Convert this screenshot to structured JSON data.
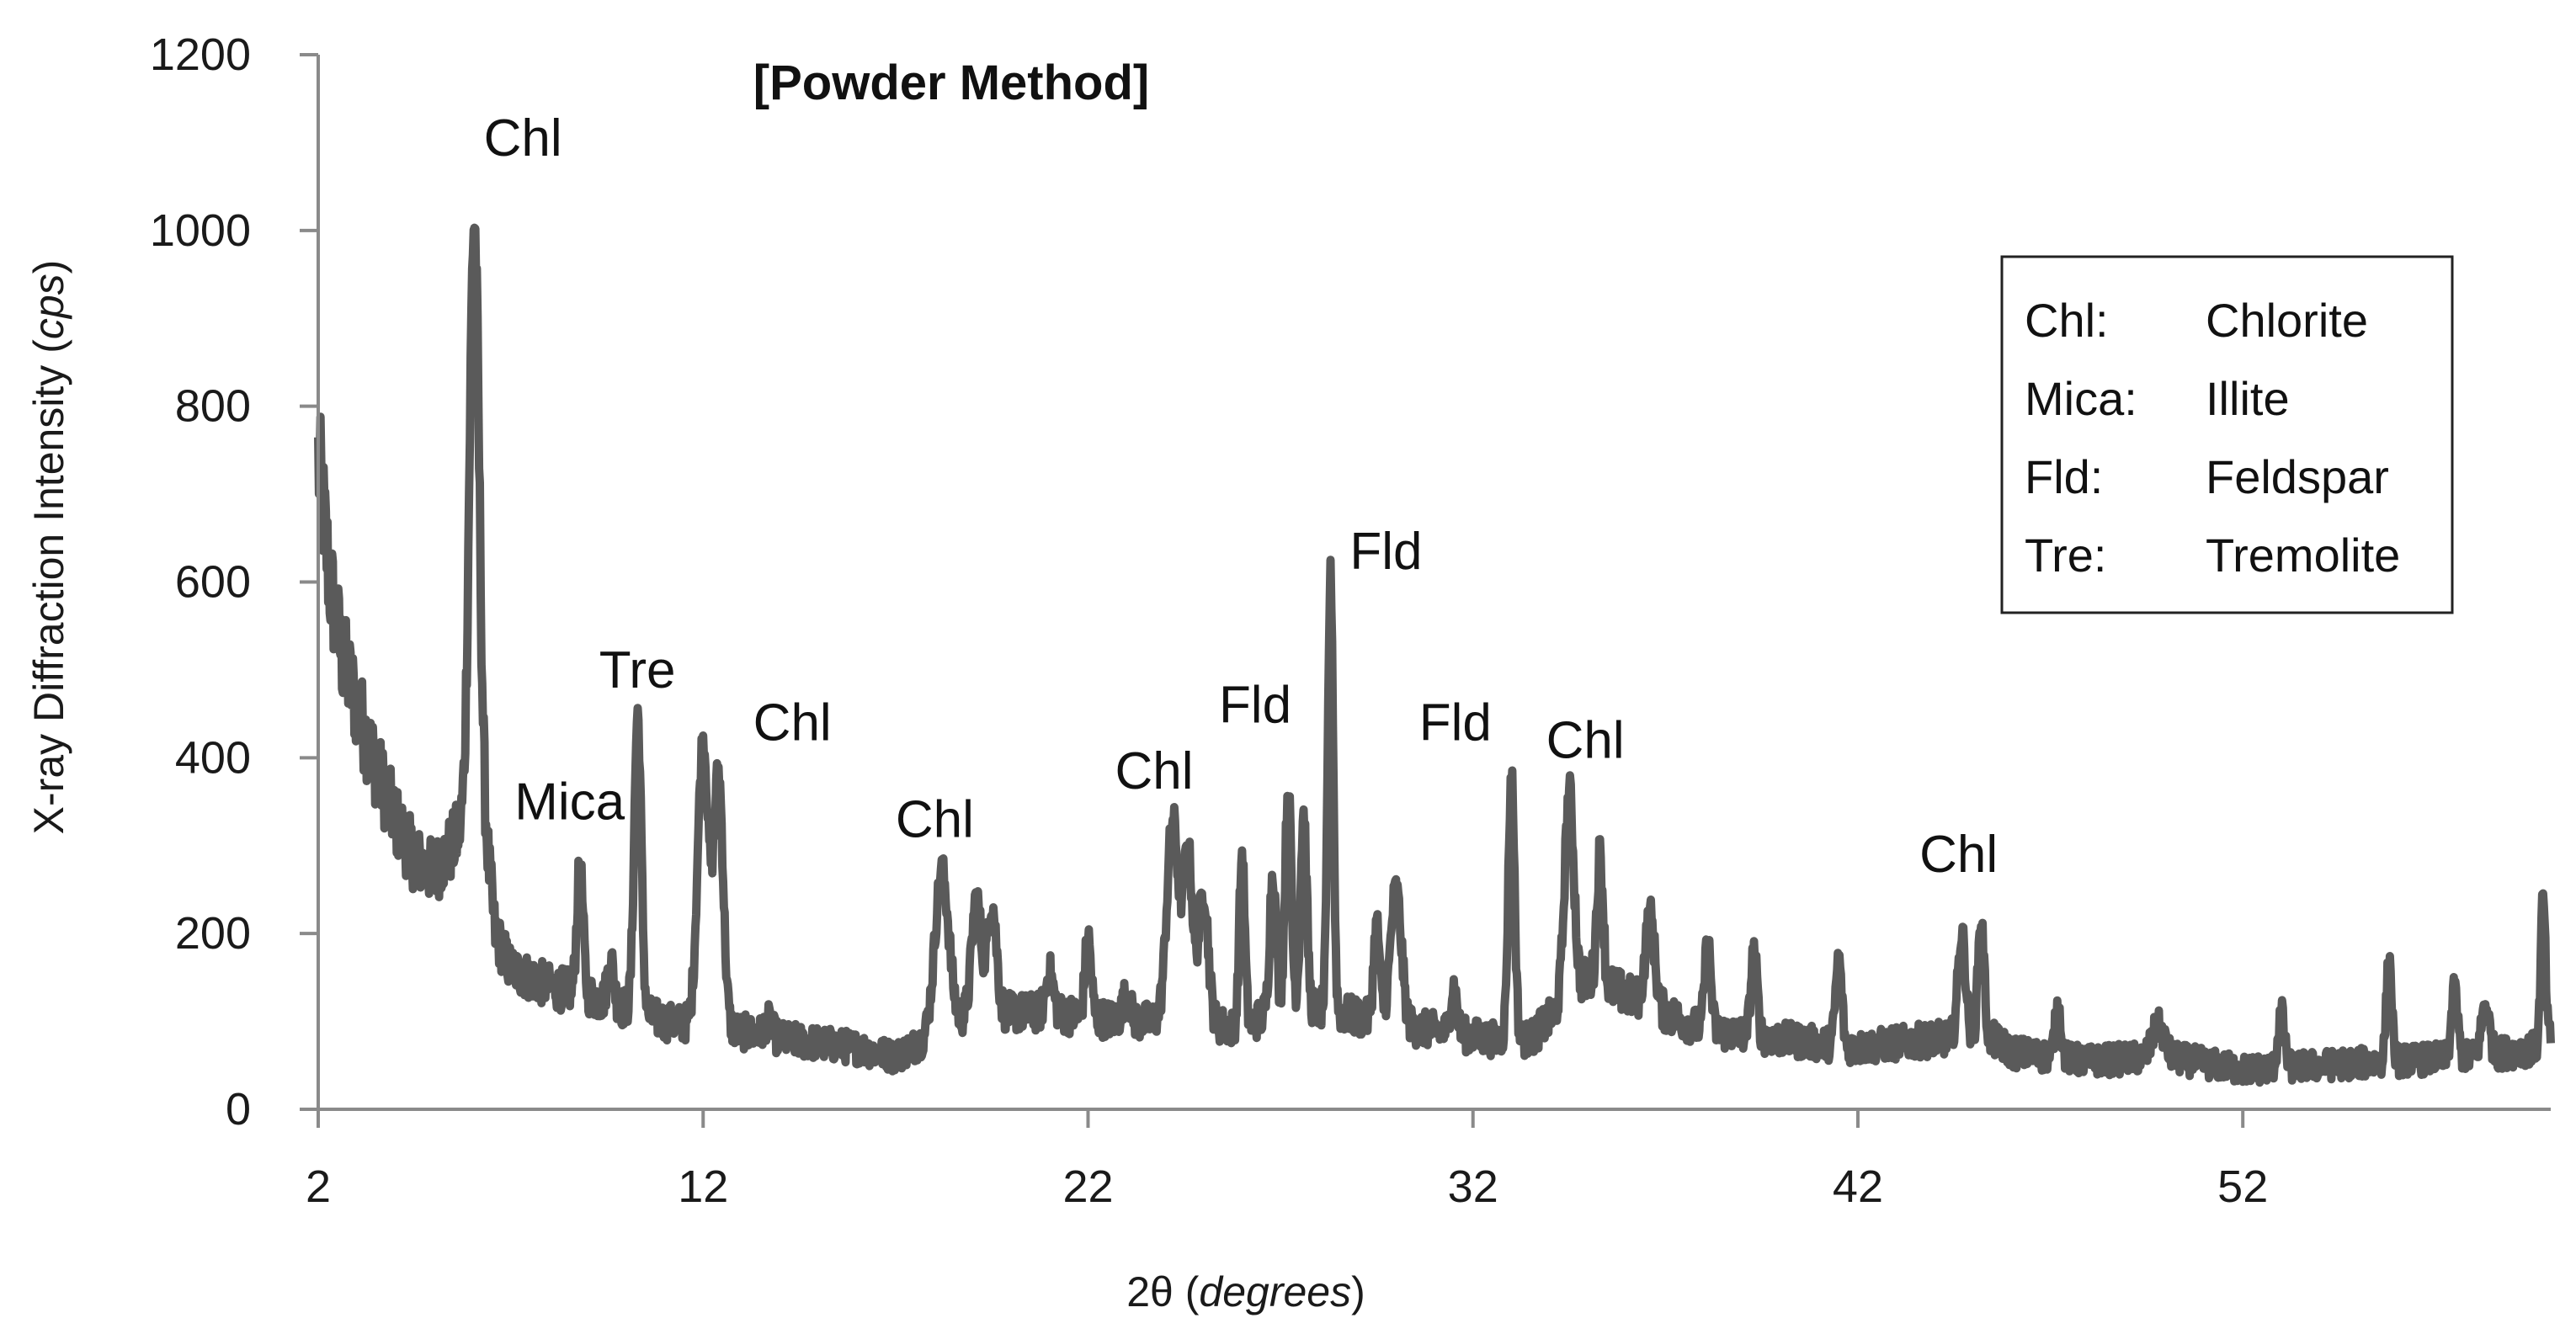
{
  "chart_data": {
    "type": "line",
    "title": "[Powder Method]",
    "xlabel_prefix": "2θ (",
    "xlabel_italic": "degrees",
    "xlabel_suffix": ")",
    "ylabel_prefix": "X-ray Diffraction Intensity (",
    "ylabel_italic": "cps",
    "ylabel_suffix": ")",
    "xlim": [
      2,
      60
    ],
    "ylim": [
      0,
      1200
    ],
    "xticks": [
      "2",
      "12",
      "22",
      "32",
      "42",
      "52"
    ],
    "xtick_values": [
      2,
      12,
      22,
      32,
      42,
      52
    ],
    "yticks": [
      "0",
      "200",
      "400",
      "600",
      "800",
      "1000",
      "1200"
    ],
    "ytick_values": [
      0,
      200,
      400,
      600,
      800,
      1000,
      1200
    ],
    "grid": false,
    "line_color": "#5a5a5a",
    "baseline": [
      [
        2.0,
        740
      ],
      [
        2.3,
        600
      ],
      [
        2.6,
        520
      ],
      [
        3.0,
        460
      ],
      [
        3.5,
        390
      ],
      [
        4.0,
        330
      ],
      [
        4.5,
        285
      ],
      [
        5.0,
        270
      ],
      [
        5.5,
        300
      ],
      [
        5.8,
        330
      ],
      [
        6.2,
        380
      ],
      [
        6.6,
        200
      ],
      [
        7.0,
        160
      ],
      [
        8.0,
        140
      ],
      [
        9.0,
        130
      ],
      [
        10.0,
        115
      ],
      [
        11.0,
        100
      ],
      [
        12.8,
        90
      ],
      [
        14.0,
        80
      ],
      [
        16.0,
        70
      ],
      [
        17.0,
        60
      ],
      [
        19.0,
        110
      ],
      [
        21.0,
        110
      ],
      [
        23.0,
        100
      ],
      [
        25.0,
        100
      ],
      [
        26.0,
        90
      ],
      [
        27.0,
        120
      ],
      [
        28.5,
        110
      ],
      [
        30.0,
        95
      ],
      [
        31.0,
        90
      ],
      [
        32.5,
        80
      ],
      [
        33.5,
        80
      ],
      [
        35.0,
        150
      ],
      [
        36.0,
        130
      ],
      [
        37.0,
        110
      ],
      [
        38.0,
        90
      ],
      [
        40.0,
        80
      ],
      [
        42.0,
        70
      ],
      [
        44.0,
        80
      ],
      [
        45.5,
        80
      ],
      [
        46.0,
        65
      ],
      [
        48.0,
        55
      ],
      [
        50.0,
        60
      ],
      [
        52.0,
        45
      ],
      [
        54.0,
        50
      ],
      [
        56.0,
        55
      ],
      [
        58.0,
        60
      ],
      [
        59.7,
        70
      ],
      [
        60.0,
        80
      ]
    ],
    "peaks": [
      {
        "x": 6.05,
        "y": 1010,
        "w": 0.12
      },
      {
        "x": 8.8,
        "y": 275,
        "w": 0.08
      },
      {
        "x": 9.6,
        "y": 170,
        "w": 0.08
      },
      {
        "x": 10.3,
        "y": 450,
        "w": 0.09
      },
      {
        "x": 12.0,
        "y": 420,
        "w": 0.14
      },
      {
        "x": 12.4,
        "y": 380,
        "w": 0.12
      },
      {
        "x": 13.7,
        "y": 100,
        "w": 0.1
      },
      {
        "x": 18.2,
        "y": 270,
        "w": 0.18
      },
      {
        "x": 19.1,
        "y": 240,
        "w": 0.12
      },
      {
        "x": 19.5,
        "y": 235,
        "w": 0.12
      },
      {
        "x": 21.0,
        "y": 155,
        "w": 0.1
      },
      {
        "x": 22.0,
        "y": 195,
        "w": 0.08
      },
      {
        "x": 23.0,
        "y": 130,
        "w": 0.1
      },
      {
        "x": 24.2,
        "y": 330,
        "w": 0.15
      },
      {
        "x": 24.6,
        "y": 290,
        "w": 0.12
      },
      {
        "x": 25.0,
        "y": 250,
        "w": 0.12
      },
      {
        "x": 26.0,
        "y": 290,
        "w": 0.07
      },
      {
        "x": 26.8,
        "y": 270,
        "w": 0.08
      },
      {
        "x": 27.2,
        "y": 365,
        "w": 0.08
      },
      {
        "x": 27.6,
        "y": 335,
        "w": 0.08
      },
      {
        "x": 28.3,
        "y": 605,
        "w": 0.07
      },
      {
        "x": 29.5,
        "y": 210,
        "w": 0.08
      },
      {
        "x": 30.0,
        "y": 250,
        "w": 0.14
      },
      {
        "x": 31.5,
        "y": 140,
        "w": 0.08
      },
      {
        "x": 33.0,
        "y": 380,
        "w": 0.08
      },
      {
        "x": 34.5,
        "y": 360,
        "w": 0.12
      },
      {
        "x": 35.3,
        "y": 290,
        "w": 0.08
      },
      {
        "x": 36.6,
        "y": 220,
        "w": 0.12
      },
      {
        "x": 38.1,
        "y": 190,
        "w": 0.08
      },
      {
        "x": 39.3,
        "y": 180,
        "w": 0.08
      },
      {
        "x": 41.5,
        "y": 170,
        "w": 0.08
      },
      {
        "x": 44.7,
        "y": 200,
        "w": 0.1
      },
      {
        "x": 45.2,
        "y": 215,
        "w": 0.08
      },
      {
        "x": 47.2,
        "y": 115,
        "w": 0.08
      },
      {
        "x": 49.8,
        "y": 95,
        "w": 0.15
      },
      {
        "x": 53.0,
        "y": 110,
        "w": 0.08
      },
      {
        "x": 55.8,
        "y": 170,
        "w": 0.07
      },
      {
        "x": 57.5,
        "y": 135,
        "w": 0.08
      },
      {
        "x": 58.3,
        "y": 120,
        "w": 0.1
      },
      {
        "x": 59.8,
        "y": 240,
        "w": 0.06
      }
    ],
    "annotations": [
      {
        "text": "Chl",
        "x": 6.3,
        "y": 1085
      },
      {
        "text": "Mica",
        "x": 7.1,
        "y": 330
      },
      {
        "text": "Tre",
        "x": 9.3,
        "y": 480
      },
      {
        "text": "Chl",
        "x": 13.3,
        "y": 420
      },
      {
        "text": "Chl",
        "x": 17.0,
        "y": 310
      },
      {
        "text": "Chl",
        "x": 22.7,
        "y": 365
      },
      {
        "text": "Fld",
        "x": 25.4,
        "y": 440
      },
      {
        "text": "Fld",
        "x": 28.8,
        "y": 615
      },
      {
        "text": "Fld",
        "x": 30.6,
        "y": 420
      },
      {
        "text": "Chl",
        "x": 33.9,
        "y": 400
      },
      {
        "text": "Chl",
        "x": 43.6,
        "y": 270
      }
    ],
    "legend": {
      "placement": "top-right",
      "entries": [
        {
          "abbr": "Chl:",
          "name": "Chlorite"
        },
        {
          "abbr": "Mica:",
          "name": "Illite"
        },
        {
          "abbr": "Fld:",
          "name": "Feldspar"
        },
        {
          "abbr": "Tre:",
          "name": "Tremolite"
        }
      ]
    }
  }
}
